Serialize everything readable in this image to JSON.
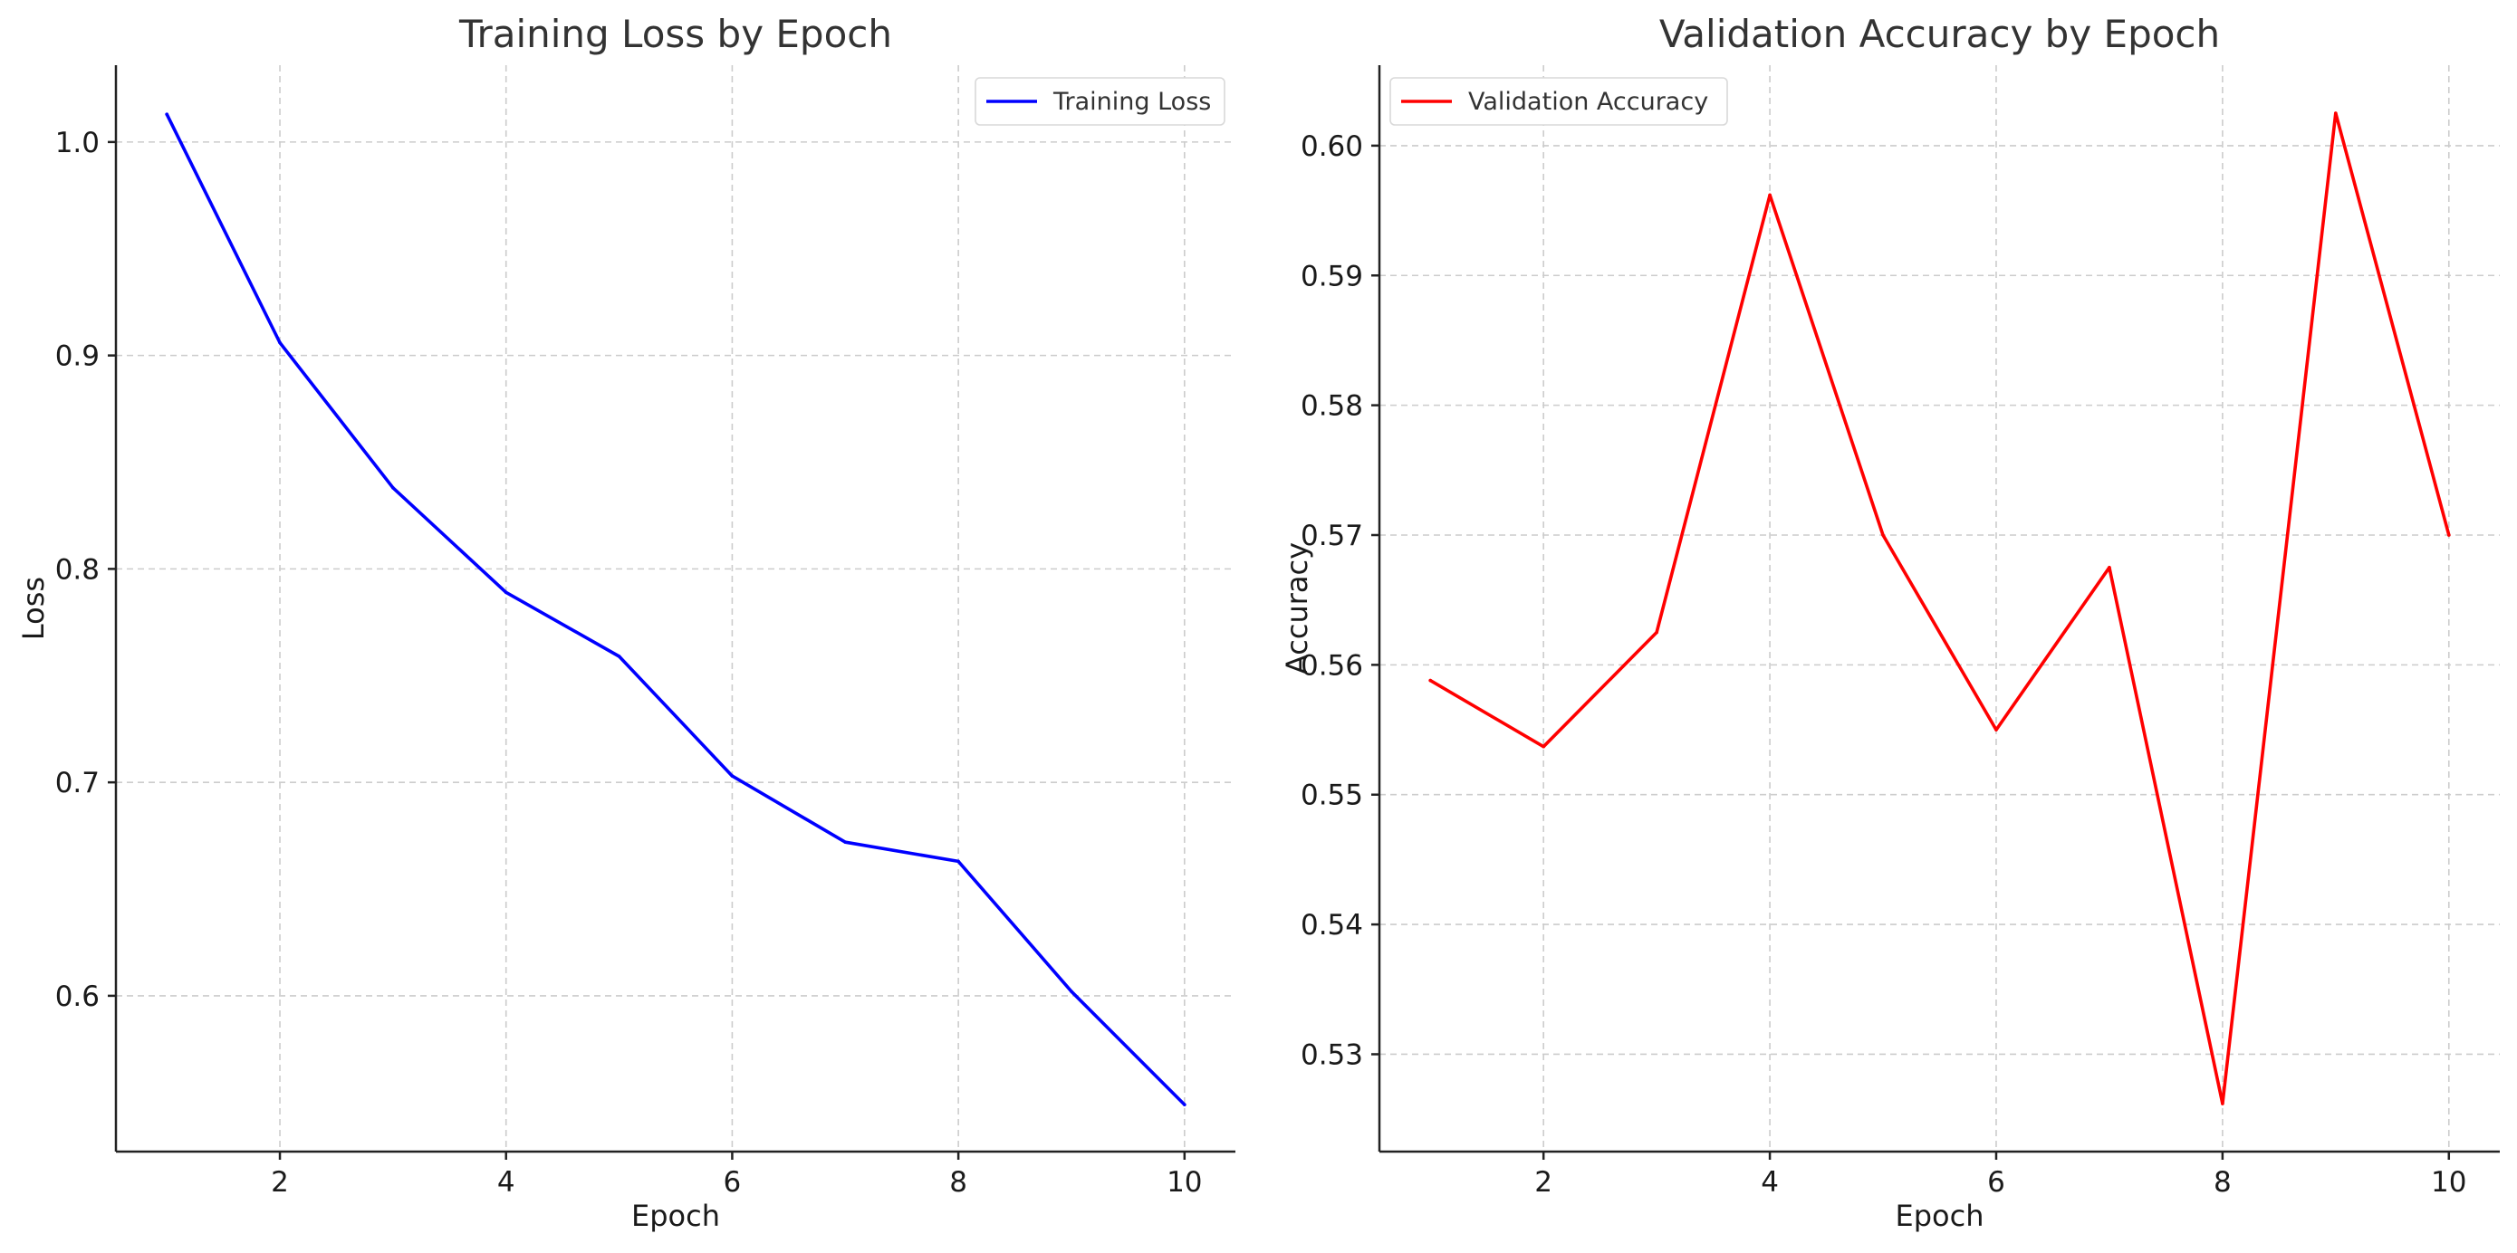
{
  "chart_data": [
    {
      "type": "line",
      "title": "Training Loss by Epoch",
      "xlabel": "Epoch",
      "ylabel": "Loss",
      "x": [
        1,
        2,
        3,
        4,
        5,
        6,
        7,
        8,
        9,
        10
      ],
      "xticks": [
        2,
        4,
        6,
        8,
        10
      ],
      "yticks": [
        0.6,
        0.7,
        0.8,
        0.9,
        1.0
      ],
      "ytick_labels": [
        "0.6",
        "0.7",
        "0.8",
        "0.9",
        "1.0"
      ],
      "xlim": [
        0.55,
        10.45
      ],
      "ylim": [
        0.527,
        1.036
      ],
      "grid": true,
      "legend_position": "top-right",
      "series": [
        {
          "name": "Training Loss",
          "color": "#0000ff",
          "values": [
            1.013,
            0.906,
            0.838,
            0.789,
            0.759,
            0.703,
            0.672,
            0.663,
            0.602,
            0.549
          ]
        }
      ]
    },
    {
      "type": "line",
      "title": "Validation Accuracy by Epoch",
      "xlabel": "Epoch",
      "ylabel": "Accuracy",
      "x": [
        1,
        2,
        3,
        4,
        5,
        6,
        7,
        8,
        9,
        10
      ],
      "xticks": [
        2,
        4,
        6,
        8,
        10
      ],
      "yticks": [
        0.53,
        0.54,
        0.55,
        0.56,
        0.57,
        0.58,
        0.59,
        0.6
      ],
      "ytick_labels": [
        "0.53",
        "0.54",
        "0.55",
        "0.56",
        "0.57",
        "0.58",
        "0.59",
        "0.60"
      ],
      "xlim": [
        0.55,
        10.45
      ],
      "ylim": [
        0.5225,
        0.6062
      ],
      "grid": true,
      "legend_position": "top-left",
      "series": [
        {
          "name": "Validation Accuracy",
          "color": "#ff0000",
          "values": [
            0.5588,
            0.5537,
            0.5625,
            0.5962,
            0.57,
            0.555,
            0.5675,
            0.5262,
            0.6025,
            0.57
          ]
        }
      ]
    }
  ]
}
